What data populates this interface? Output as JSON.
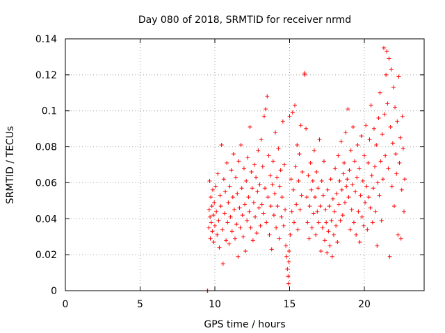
{
  "chart_data": {
    "type": "scatter",
    "title": "Day 080 of 2018, SRMTID for receiver nrmd",
    "xlabel": "GPS time / hours",
    "ylabel": "SRMTID / TECUs",
    "xlim": [
      0,
      24
    ],
    "ylim": [
      0,
      0.14
    ],
    "x_ticks": [
      0,
      5,
      10,
      15,
      20
    ],
    "x_tick_labels": [
      "0",
      "5",
      "10",
      "15",
      "20"
    ],
    "y_ticks": [
      0,
      0.02,
      0.04,
      0.06,
      0.08,
      0.1,
      0.12,
      0.14
    ],
    "y_tick_labels": [
      "0",
      "0.02",
      "0.04",
      "0.06",
      "0.08",
      "0.1",
      "0.12",
      "0.14"
    ],
    "grid": true,
    "marker": "+",
    "series": [
      {
        "name": "SRMTID",
        "color": "#ff0000",
        "points": [
          [
            9.5,
            0.0
          ],
          [
            9.52,
            0.0
          ],
          [
            9.6,
            0.035
          ],
          [
            9.62,
            0.045
          ],
          [
            9.65,
            0.061
          ],
          [
            9.68,
            0.041
          ],
          [
            9.7,
            0.029
          ],
          [
            9.73,
            0.052
          ],
          [
            9.76,
            0.038
          ],
          [
            9.8,
            0.047
          ],
          [
            9.83,
            0.033
          ],
          [
            9.86,
            0.056
          ],
          [
            9.9,
            0.042
          ],
          [
            9.93,
            0.027
          ],
          [
            9.96,
            0.049
          ],
          [
            10.0,
            0.036
          ],
          [
            10.05,
            0.058
          ],
          [
            10.1,
            0.044
          ],
          [
            10.15,
            0.031
          ],
          [
            10.2,
            0.065
          ],
          [
            10.25,
            0.039
          ],
          [
            10.3,
            0.024
          ],
          [
            10.35,
            0.053
          ],
          [
            10.4,
            0.047
          ],
          [
            10.45,
            0.081
          ],
          [
            10.5,
            0.034
          ],
          [
            10.55,
            0.015
          ],
          [
            10.6,
            0.062
          ],
          [
            10.65,
            0.043
          ],
          [
            10.7,
            0.055
          ],
          [
            10.75,
            0.028
          ],
          [
            10.8,
            0.071
          ],
          [
            10.85,
            0.038
          ],
          [
            10.9,
            0.049
          ],
          [
            10.95,
            0.026
          ],
          [
            11.0,
            0.058
          ],
          [
            11.05,
            0.041
          ],
          [
            11.1,
            0.067
          ],
          [
            11.15,
            0.033
          ],
          [
            11.2,
            0.052
          ],
          [
            11.25,
            0.076
          ],
          [
            11.3,
            0.045
          ],
          [
            11.35,
            0.029
          ],
          [
            11.4,
            0.063
          ],
          [
            11.45,
            0.037
          ],
          [
            11.5,
            0.054
          ],
          [
            11.55,
            0.019
          ],
          [
            11.6,
            0.072
          ],
          [
            11.65,
            0.046
          ],
          [
            11.7,
            0.035
          ],
          [
            11.75,
            0.081
          ],
          [
            11.8,
            0.057
          ],
          [
            11.85,
            0.042
          ],
          [
            11.9,
            0.03
          ],
          [
            11.95,
            0.068
          ],
          [
            12.0,
            0.048
          ],
          [
            12.05,
            0.022
          ],
          [
            12.1,
            0.061
          ],
          [
            12.15,
            0.039
          ],
          [
            12.2,
            0.074
          ],
          [
            12.25,
            0.052
          ],
          [
            12.3,
            0.044
          ],
          [
            12.35,
            0.091
          ],
          [
            12.4,
            0.035
          ],
          [
            12.45,
            0.066
          ],
          [
            12.5,
            0.057
          ],
          [
            12.55,
            0.028
          ],
          [
            12.6,
            0.049
          ],
          [
            12.65,
            0.07
          ],
          [
            12.7,
            0.041
          ],
          [
            12.75,
            0.063
          ],
          [
            12.8,
            0.032
          ],
          [
            12.85,
            0.055
          ],
          [
            12.9,
            0.078
          ],
          [
            12.95,
            0.046
          ],
          [
            13.0,
            0.059
          ],
          [
            13.05,
            0.036
          ],
          [
            13.1,
            0.084
          ],
          [
            13.15,
            0.048
          ],
          [
            13.2,
            0.069
          ],
          [
            13.25,
            0.043
          ],
          [
            13.3,
            0.097
          ],
          [
            13.35,
            0.057
          ],
          [
            13.4,
            0.101
          ],
          [
            13.45,
            0.038
          ],
          [
            13.5,
            0.108
          ],
          [
            13.55,
            0.052
          ],
          [
            13.6,
            0.075
          ],
          [
            13.65,
            0.031
          ],
          [
            13.7,
            0.064
          ],
          [
            13.75,
            0.047
          ],
          [
            13.8,
            0.023
          ],
          [
            13.85,
            0.059
          ],
          [
            13.9,
            0.072
          ],
          [
            13.95,
            0.042
          ],
          [
            14.0,
            0.054
          ],
          [
            14.05,
            0.088
          ],
          [
            14.1,
            0.035
          ],
          [
            14.15,
            0.063
          ],
          [
            14.2,
            0.047
          ],
          [
            14.25,
            0.079
          ],
          [
            14.3,
            0.029
          ],
          [
            14.35,
            0.058
          ],
          [
            14.4,
            0.067
          ],
          [
            14.45,
            0.041
          ],
          [
            14.5,
            0.052
          ],
          [
            14.55,
            0.094
          ],
          [
            14.6,
            0.036
          ],
          [
            14.65,
            0.07
          ],
          [
            14.7,
            0.045
          ],
          [
            14.75,
            0.025
          ],
          [
            14.8,
            0.019
          ],
          [
            14.85,
            0.012
          ],
          [
            14.9,
            0.008
          ],
          [
            14.92,
            0.004
          ],
          [
            14.95,
            0.016
          ],
          [
            14.97,
            0.022
          ],
          [
            15.0,
            0.097
          ],
          [
            15.05,
            0.031
          ],
          [
            15.1,
            0.062
          ],
          [
            15.15,
            0.044
          ],
          [
            15.2,
            0.099
          ],
          [
            15.25,
            0.056
          ],
          [
            15.3,
            0.038
          ],
          [
            15.35,
            0.103
          ],
          [
            15.4,
            0.069
          ],
          [
            15.45,
            0.048
          ],
          [
            15.5,
            0.081
          ],
          [
            15.55,
            0.034
          ],
          [
            15.6,
            0.061
          ],
          [
            15.65,
            0.076
          ],
          [
            15.7,
            0.045
          ],
          [
            15.75,
            0.092
          ],
          [
            15.8,
            0.053
          ],
          [
            15.85,
            0.066
          ],
          [
            16.0,
            0.121
          ],
          [
            16.02,
            0.12
          ],
          [
            16.1,
            0.09
          ],
          [
            16.15,
            0.052
          ],
          [
            16.2,
            0.038
          ],
          [
            16.25,
            0.064
          ],
          [
            16.3,
            0.029
          ],
          [
            16.35,
            0.047
          ],
          [
            16.4,
            0.071
          ],
          [
            16.45,
            0.056
          ],
          [
            16.5,
            0.035
          ],
          [
            16.55,
            0.061
          ],
          [
            16.6,
            0.043
          ],
          [
            16.65,
            0.078
          ],
          [
            16.7,
            0.052
          ],
          [
            16.75,
            0.031
          ],
          [
            16.8,
            0.066
          ],
          [
            16.85,
            0.044
          ],
          [
            16.9,
            0.057
          ],
          [
            16.95,
            0.038
          ],
          [
            17.0,
            0.084
          ],
          [
            17.05,
            0.047
          ],
          [
            17.1,
            0.022
          ],
          [
            17.15,
            0.061
          ],
          [
            17.2,
            0.035
          ],
          [
            17.25,
            0.053
          ],
          [
            17.3,
            0.072
          ],
          [
            17.35,
            0.028
          ],
          [
            17.4,
            0.045
          ],
          [
            17.45,
            0.038
          ],
          [
            17.5,
            0.021
          ],
          [
            17.55,
            0.056
          ],
          [
            17.6,
            0.033
          ],
          [
            17.65,
            0.047
          ],
          [
            17.7,
            0.025
          ],
          [
            17.75,
            0.062
          ],
          [
            17.8,
            0.039
          ],
          [
            17.85,
            0.019
          ],
          [
            17.9,
            0.051
          ],
          [
            17.95,
            0.031
          ],
          [
            18.0,
            0.044
          ],
          [
            18.05,
            0.068
          ],
          [
            18.1,
            0.036
          ],
          [
            18.15,
            0.054
          ],
          [
            18.2,
            0.027
          ],
          [
            18.25,
            0.075
          ],
          [
            18.3,
            0.048
          ],
          [
            18.35,
            0.061
          ],
          [
            18.4,
            0.039
          ],
          [
            18.45,
            0.083
          ],
          [
            18.5,
            0.056
          ],
          [
            18.55,
            0.042
          ],
          [
            18.6,
            0.065
          ],
          [
            18.65,
            0.071
          ],
          [
            18.7,
            0.049
          ],
          [
            18.75,
            0.088
          ],
          [
            18.8,
            0.058
          ],
          [
            18.85,
            0.062
          ],
          [
            18.9,
            0.101
          ],
          [
            18.95,
            0.052
          ],
          [
            19.0,
            0.067
          ],
          [
            19.05,
            0.034
          ],
          [
            19.1,
            0.078
          ],
          [
            19.15,
            0.045
          ],
          [
            19.2,
            0.059
          ],
          [
            19.25,
            0.091
          ],
          [
            19.3,
            0.038
          ],
          [
            19.35,
            0.072
          ],
          [
            19.4,
            0.055
          ],
          [
            19.45,
            0.031
          ],
          [
            19.5,
            0.063
          ],
          [
            19.55,
            0.081
          ],
          [
            19.6,
            0.044
          ],
          [
            19.65,
            0.068
          ],
          [
            19.7,
            0.027
          ],
          [
            19.75,
            0.053
          ],
          [
            19.8,
            0.086
          ],
          [
            19.85,
            0.041
          ],
          [
            19.9,
            0.061
          ],
          [
            19.95,
            0.036
          ],
          [
            20.0,
            0.075
          ],
          [
            20.05,
            0.049
          ],
          [
            20.1,
            0.092
          ],
          [
            20.15,
            0.058
          ],
          [
            20.2,
            0.034
          ],
          [
            20.25,
            0.071
          ],
          [
            20.3,
            0.052
          ],
          [
            20.35,
            0.084
          ],
          [
            20.4,
            0.046
          ],
          [
            20.45,
            0.103
          ],
          [
            20.5,
            0.064
          ],
          [
            20.55,
            0.038
          ],
          [
            20.6,
            0.057
          ],
          [
            20.65,
            0.09
          ],
          [
            20.7,
            0.069
          ],
          [
            20.75,
            0.044
          ],
          [
            20.8,
            0.081
          ],
          [
            20.85,
            0.025
          ],
          [
            20.9,
            0.06
          ],
          [
            20.95,
            0.096
          ],
          [
            21.0,
            0.053
          ],
          [
            21.05,
            0.11
          ],
          [
            21.1,
            0.072
          ],
          [
            21.15,
            0.039
          ],
          [
            21.2,
            0.087
          ],
          [
            21.25,
            0.062
          ],
          [
            21.3,
            0.135
          ],
          [
            21.35,
            0.098
          ],
          [
            21.4,
            0.075
          ],
          [
            21.45,
            0.12
          ],
          [
            21.5,
            0.133
          ],
          [
            21.55,
            0.104
          ],
          [
            21.6,
            0.068
          ],
          [
            21.65,
            0.129
          ],
          [
            21.7,
            0.019
          ],
          [
            21.75,
            0.091
          ],
          [
            21.8,
            0.123
          ],
          [
            21.85,
            0.058
          ],
          [
            21.9,
            0.082
          ],
          [
            21.95,
            0.113
          ],
          [
            22.0,
            0.047
          ],
          [
            22.05,
            0.102
          ],
          [
            22.1,
            0.076
          ],
          [
            22.15,
            0.065
          ],
          [
            22.2,
            0.094
          ],
          [
            22.25,
            0.031
          ],
          [
            22.3,
            0.119
          ],
          [
            22.35,
            0.071
          ],
          [
            22.4,
            0.085
          ],
          [
            22.45,
            0.029
          ],
          [
            22.5,
            0.056
          ],
          [
            22.55,
            0.097
          ],
          [
            22.6,
            0.079
          ],
          [
            22.65,
            0.044
          ],
          [
            22.7,
            0.062
          ]
        ]
      }
    ]
  }
}
